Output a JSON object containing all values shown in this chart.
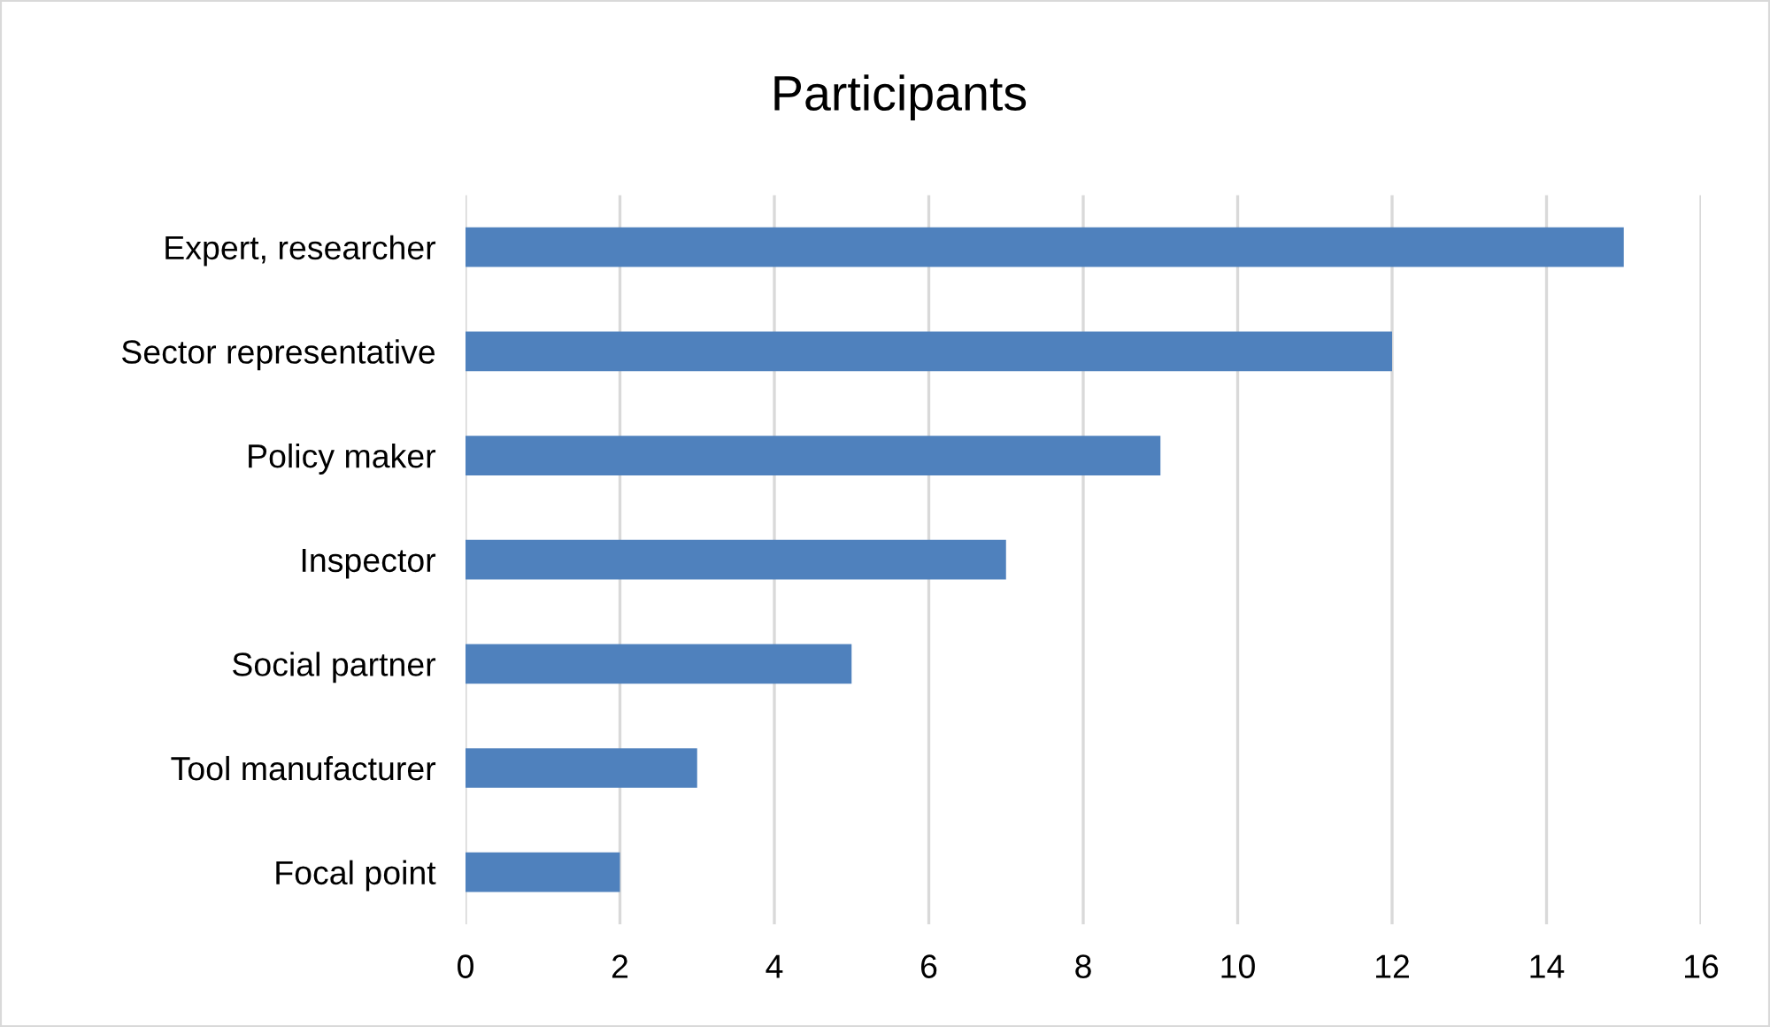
{
  "chart_data": {
    "type": "bar",
    "orientation": "horizontal",
    "title": "Participants",
    "categories": [
      "Expert, researcher",
      "Sector representative",
      "Policy maker",
      "Inspector",
      "Social partner",
      "Tool manufacturer",
      "Focal point"
    ],
    "values": [
      15,
      12,
      9,
      7,
      5,
      3,
      2
    ],
    "color": "#4f81bd",
    "xlim": [
      0,
      16
    ],
    "xticks": [
      0,
      2,
      4,
      6,
      8,
      10,
      12,
      14,
      16
    ],
    "grid": "x",
    "legend": false
  }
}
